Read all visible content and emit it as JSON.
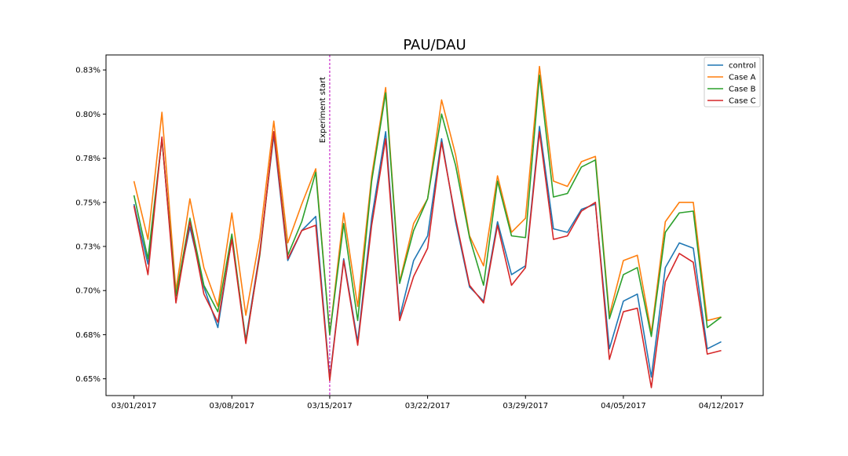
{
  "chart_data": {
    "type": "line",
    "title": "PAU/DAU",
    "xlabel": "",
    "ylabel": "",
    "x_tick_labels": [
      "03/01/2017",
      "03/08/2017",
      "03/15/2017",
      "03/22/2017",
      "03/29/2017",
      "04/05/2017",
      "04/12/2017"
    ],
    "x_tick_days": [
      0,
      7,
      14,
      21,
      28,
      35,
      42
    ],
    "xlim": [
      -2,
      45
    ],
    "ylim": [
      0.6405,
      0.8335
    ],
    "y_ticks": [
      0.65,
      0.675,
      0.7,
      0.725,
      0.75,
      0.775,
      0.8,
      0.825
    ],
    "y_tick_labels": [
      "0.65%",
      "0.68%",
      "0.70%",
      "0.73%",
      "0.75%",
      "0.78%",
      "0.80%",
      "0.83%"
    ],
    "annotation": {
      "label": "Experiment start",
      "day": 14,
      "color": "#bf00bf"
    },
    "legend_position": "top-right",
    "grid": false,
    "series": [
      {
        "name": "control",
        "color": "#1f77b4",
        "values": [
          0.749,
          0.715,
          0.786,
          0.697,
          0.736,
          0.702,
          0.679,
          0.73,
          0.672,
          0.722,
          0.788,
          0.717,
          0.734,
          0.742,
          0.65,
          0.718,
          0.671,
          0.741,
          0.79,
          0.685,
          0.717,
          0.731,
          0.786,
          0.739,
          0.702,
          0.694,
          0.739,
          0.709,
          0.714,
          0.793,
          0.735,
          0.733,
          0.746,
          0.749,
          0.667,
          0.694,
          0.698,
          0.651,
          0.713,
          0.727,
          0.724,
          0.667,
          0.671
        ]
      },
      {
        "name": "Case A",
        "color": "#ff7f0e",
        "values": [
          0.762,
          0.729,
          0.801,
          0.7,
          0.752,
          0.713,
          0.691,
          0.744,
          0.686,
          0.73,
          0.796,
          0.727,
          0.749,
          0.769,
          0.675,
          0.744,
          0.691,
          0.765,
          0.815,
          0.705,
          0.738,
          0.752,
          0.808,
          0.777,
          0.731,
          0.714,
          0.765,
          0.733,
          0.741,
          0.827,
          0.762,
          0.759,
          0.773,
          0.776,
          0.686,
          0.717,
          0.72,
          0.676,
          0.739,
          0.75,
          0.75,
          0.683,
          0.685
        ]
      },
      {
        "name": "Case B",
        "color": "#2ca02c",
        "values": [
          0.754,
          0.718,
          0.786,
          0.697,
          0.741,
          0.703,
          0.688,
          0.732,
          0.671,
          0.72,
          0.79,
          0.72,
          0.739,
          0.767,
          0.675,
          0.738,
          0.683,
          0.762,
          0.812,
          0.704,
          0.734,
          0.752,
          0.8,
          0.771,
          0.73,
          0.703,
          0.762,
          0.731,
          0.73,
          0.822,
          0.753,
          0.755,
          0.77,
          0.774,
          0.684,
          0.709,
          0.713,
          0.674,
          0.733,
          0.744,
          0.745,
          0.679,
          0.685
        ]
      },
      {
        "name": "Case C",
        "color": "#d62728",
        "values": [
          0.748,
          0.709,
          0.787,
          0.693,
          0.739,
          0.698,
          0.682,
          0.729,
          0.67,
          0.721,
          0.79,
          0.718,
          0.734,
          0.737,
          0.649,
          0.717,
          0.669,
          0.737,
          0.786,
          0.683,
          0.708,
          0.724,
          0.784,
          0.741,
          0.703,
          0.693,
          0.737,
          0.703,
          0.713,
          0.79,
          0.729,
          0.731,
          0.745,
          0.75,
          0.661,
          0.688,
          0.69,
          0.645,
          0.705,
          0.721,
          0.716,
          0.664,
          0.666
        ]
      }
    ]
  }
}
